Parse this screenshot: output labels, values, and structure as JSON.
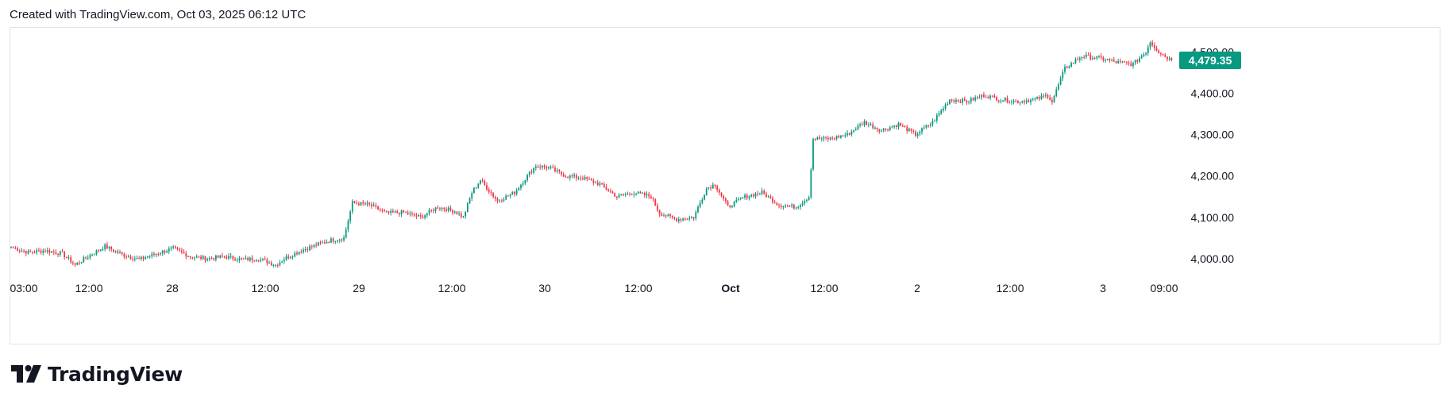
{
  "header": {
    "created_text": "Created with TradingView.com, Oct 03, 2025 06:12 UTC"
  },
  "brand": {
    "logo_text": "TradingView",
    "logo_icon": "tradingview-logo-icon"
  },
  "colors": {
    "up": "#089981",
    "down": "#f23645",
    "price_badge": "#089981",
    "axis_text": "#131722",
    "border": "#e0e3eb"
  },
  "chart_data": {
    "type": "candlestick",
    "ylim": [
      3950,
      4560
    ],
    "y_ticks": [
      "4,000.00",
      "4,100.00",
      "4,200.00",
      "4,300.00",
      "4,400.00",
      "4,500.00"
    ],
    "y_tick_values": [
      4000,
      4100,
      4200,
      4300,
      4400,
      4500
    ],
    "x_ticks": [
      {
        "label": "03:00",
        "bold": false
      },
      {
        "label": "12:00",
        "bold": false
      },
      {
        "label": "28",
        "bold": false
      },
      {
        "label": "12:00",
        "bold": false
      },
      {
        "label": "29",
        "bold": false
      },
      {
        "label": "12:00",
        "bold": false
      },
      {
        "label": "30",
        "bold": false
      },
      {
        "label": "12:00",
        "bold": false
      },
      {
        "label": "Oct",
        "bold": true
      },
      {
        "label": "12:00",
        "bold": false
      },
      {
        "label": "2",
        "bold": false
      },
      {
        "label": "12:00",
        "bold": false
      },
      {
        "label": "3",
        "bold": false
      },
      {
        "label": "09:00",
        "bold": false
      }
    ],
    "last_price": 4479.35,
    "last_price_label": "4,479.35",
    "anchors": [
      [
        0,
        4028
      ],
      [
        8,
        4015
      ],
      [
        16,
        4020
      ],
      [
        24,
        4012
      ],
      [
        30,
        3985
      ],
      [
        36,
        4005
      ],
      [
        44,
        4030
      ],
      [
        52,
        4010
      ],
      [
        60,
        3998
      ],
      [
        68,
        4012
      ],
      [
        76,
        4025
      ],
      [
        84,
        4005
      ],
      [
        92,
        4000
      ],
      [
        100,
        4005
      ],
      [
        108,
        3998
      ],
      [
        116,
        4000
      ],
      [
        124,
        3985
      ],
      [
        128,
        4000
      ],
      [
        136,
        4020
      ],
      [
        144,
        4035
      ],
      [
        150,
        4045
      ],
      [
        156,
        4050
      ],
      [
        160,
        4135
      ],
      [
        168,
        4130
      ],
      [
        176,
        4110
      ],
      [
        184,
        4112
      ],
      [
        192,
        4100
      ],
      [
        200,
        4125
      ],
      [
        208,
        4115
      ],
      [
        212,
        4100
      ],
      [
        216,
        4160
      ],
      [
        220,
        4190
      ],
      [
        228,
        4140
      ],
      [
        236,
        4160
      ],
      [
        242,
        4200
      ],
      [
        246,
        4225
      ],
      [
        252,
        4220
      ],
      [
        260,
        4200
      ],
      [
        268,
        4195
      ],
      [
        276,
        4180
      ],
      [
        284,
        4150
      ],
      [
        292,
        4160
      ],
      [
        300,
        4150
      ],
      [
        304,
        4110
      ],
      [
        312,
        4095
      ],
      [
        320,
        4100
      ],
      [
        326,
        4170
      ],
      [
        330,
        4180
      ],
      [
        336,
        4125
      ],
      [
        344,
        4150
      ],
      [
        352,
        4160
      ],
      [
        360,
        4130
      ],
      [
        368,
        4125
      ],
      [
        374,
        4150
      ],
      [
        376,
        4290
      ],
      [
        384,
        4290
      ],
      [
        392,
        4300
      ],
      [
        400,
        4330
      ],
      [
        408,
        4310
      ],
      [
        416,
        4325
      ],
      [
        424,
        4300
      ],
      [
        432,
        4330
      ],
      [
        440,
        4385
      ],
      [
        448,
        4380
      ],
      [
        456,
        4395
      ],
      [
        464,
        4385
      ],
      [
        472,
        4380
      ],
      [
        480,
        4385
      ],
      [
        486,
        4395
      ],
      [
        488,
        4380
      ],
      [
        494,
        4460
      ],
      [
        502,
        4490
      ],
      [
        510,
        4485
      ],
      [
        518,
        4475
      ],
      [
        526,
        4470
      ],
      [
        532,
        4500
      ],
      [
        534,
        4525
      ],
      [
        538,
        4500
      ],
      [
        544,
        4479.35
      ]
    ]
  }
}
